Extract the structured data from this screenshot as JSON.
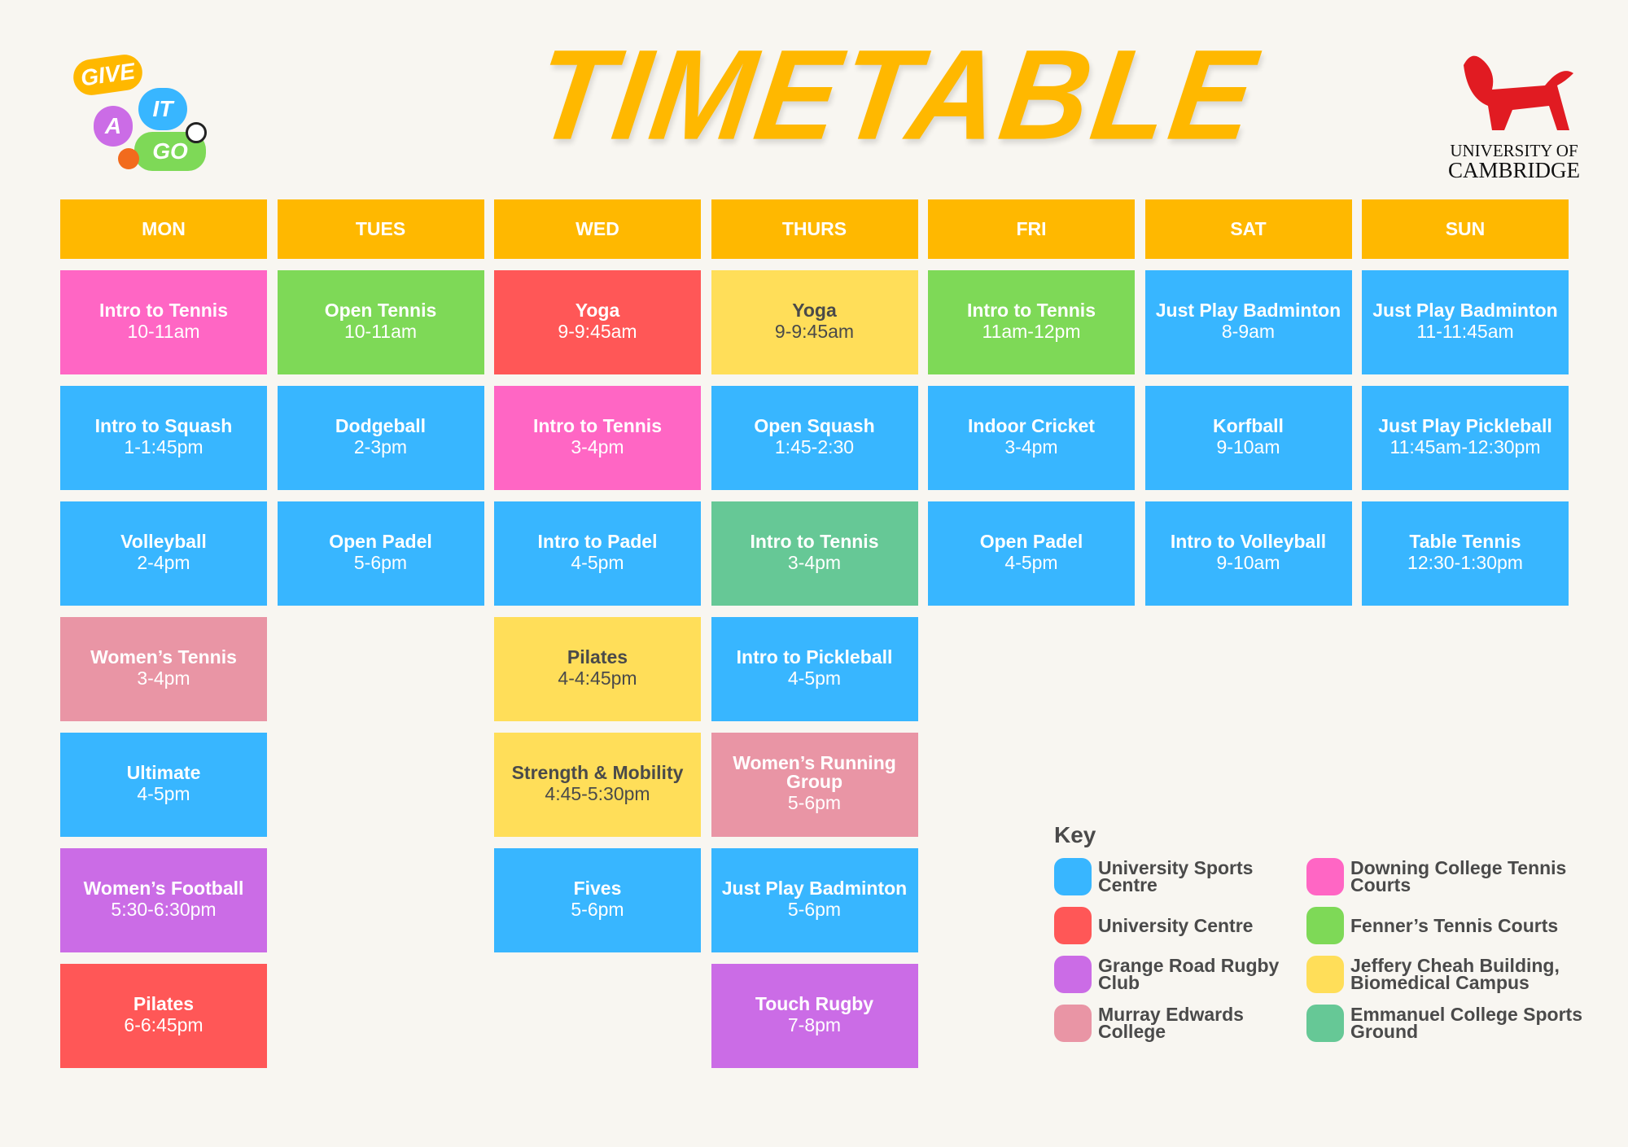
{
  "title": "TIMETABLE",
  "logo_left": {
    "words": [
      "GIVE",
      "IT",
      "A",
      "GO"
    ]
  },
  "logo_right": {
    "line1": "UNIVERSITY OF",
    "line2": "CAMBRIDGE"
  },
  "colors": {
    "header": "#ffb800",
    "blue": "#38b6ff",
    "red": "#ff5757",
    "purple": "#cb6ce6",
    "rose": "#e995a5",
    "pink": "#ff66c4",
    "green": "#7ed957",
    "yellow": "#ffde59",
    "teal": "#66c896"
  },
  "days": [
    {
      "label": "MON",
      "sessions": [
        {
          "name": "Intro to Tennis",
          "time": "10-11am",
          "color": "pink"
        },
        {
          "name": "Intro to Squash",
          "time": "1-1:45pm",
          "color": "blue"
        },
        {
          "name": "Volleyball",
          "time": "2-4pm",
          "color": "blue"
        },
        {
          "name": "Women’s Tennis",
          "time": "3-4pm",
          "color": "rose"
        },
        {
          "name": "Ultimate",
          "time": "4-5pm",
          "color": "blue"
        },
        {
          "name": "Women’s Football",
          "time": "5:30-6:30pm",
          "color": "purple"
        },
        {
          "name": "Pilates",
          "time": "6-6:45pm",
          "color": "red"
        }
      ]
    },
    {
      "label": "TUES",
      "sessions": [
        {
          "name": "Open Tennis",
          "time": "10-11am",
          "color": "green"
        },
        {
          "name": "Dodgeball",
          "time": "2-3pm",
          "color": "blue"
        },
        {
          "name": "Open Padel",
          "time": "5-6pm",
          "color": "blue"
        }
      ]
    },
    {
      "label": "WED",
      "sessions": [
        {
          "name": "Yoga",
          "time": "9-9:45am",
          "color": "red"
        },
        {
          "name": "Intro to Tennis",
          "time": "3-4pm",
          "color": "pink"
        },
        {
          "name": "Intro to Padel",
          "time": "4-5pm",
          "color": "blue"
        },
        {
          "name": "Pilates",
          "time": "4-4:45pm",
          "color": "yellow"
        },
        {
          "name": "Strength & Mobility",
          "time": "4:45-5:30pm",
          "color": "yellow"
        },
        {
          "name": "Fives",
          "time": "5-6pm",
          "color": "blue"
        }
      ]
    },
    {
      "label": "THURS",
      "sessions": [
        {
          "name": "Yoga",
          "time": "9-9:45am",
          "color": "yellow"
        },
        {
          "name": "Open Squash",
          "time": "1:45-2:30",
          "color": "blue"
        },
        {
          "name": "Intro to Tennis",
          "time": "3-4pm",
          "color": "teal"
        },
        {
          "name": "Intro to Pickleball",
          "time": "4-5pm",
          "color": "blue"
        },
        {
          "name": "Women’s Running Group",
          "time": "5-6pm",
          "color": "rose"
        },
        {
          "name": "Just Play Badminton",
          "time": "5-6pm",
          "color": "blue"
        },
        {
          "name": "Touch Rugby",
          "time": "7-8pm",
          "color": "purple"
        }
      ]
    },
    {
      "label": "FRI",
      "sessions": [
        {
          "name": "Intro to Tennis",
          "time": "11am-12pm",
          "color": "green"
        },
        {
          "name": "Indoor Cricket",
          "time": "3-4pm",
          "color": "blue"
        },
        {
          "name": "Open Padel",
          "time": "4-5pm",
          "color": "blue"
        }
      ]
    },
    {
      "label": "SAT",
      "sessions": [
        {
          "name": "Just Play Badminton",
          "time": "8-9am",
          "color": "blue"
        },
        {
          "name": "Korfball",
          "time": "9-10am",
          "color": "blue"
        },
        {
          "name": "Intro to Volleyball",
          "time": "9-10am",
          "color": "blue"
        }
      ]
    },
    {
      "label": "SUN",
      "sessions": [
        {
          "name": "Just Play Badminton",
          "time": "11-11:45am",
          "color": "blue"
        },
        {
          "name": "Just Play Pickleball",
          "time": "11:45am-12:30pm",
          "color": "blue"
        },
        {
          "name": "Table Tennis",
          "time": "12:30-1:30pm",
          "color": "blue"
        }
      ]
    }
  ],
  "key": {
    "title": "Key",
    "items": [
      {
        "label": "University Sports Centre",
        "color": "blue"
      },
      {
        "label": "Downing College Tennis Courts",
        "color": "pink"
      },
      {
        "label": "University Centre",
        "color": "red"
      },
      {
        "label": "Fenner’s Tennis Courts",
        "color": "green"
      },
      {
        "label": "Grange Road Rugby Club",
        "color": "purple"
      },
      {
        "label": "Jeffery Cheah Building, Biomedical Campus",
        "color": "yellow"
      },
      {
        "label": "Murray Edwards College",
        "color": "rose"
      },
      {
        "label": "Emmanuel College Sports Ground",
        "color": "teal"
      }
    ]
  }
}
